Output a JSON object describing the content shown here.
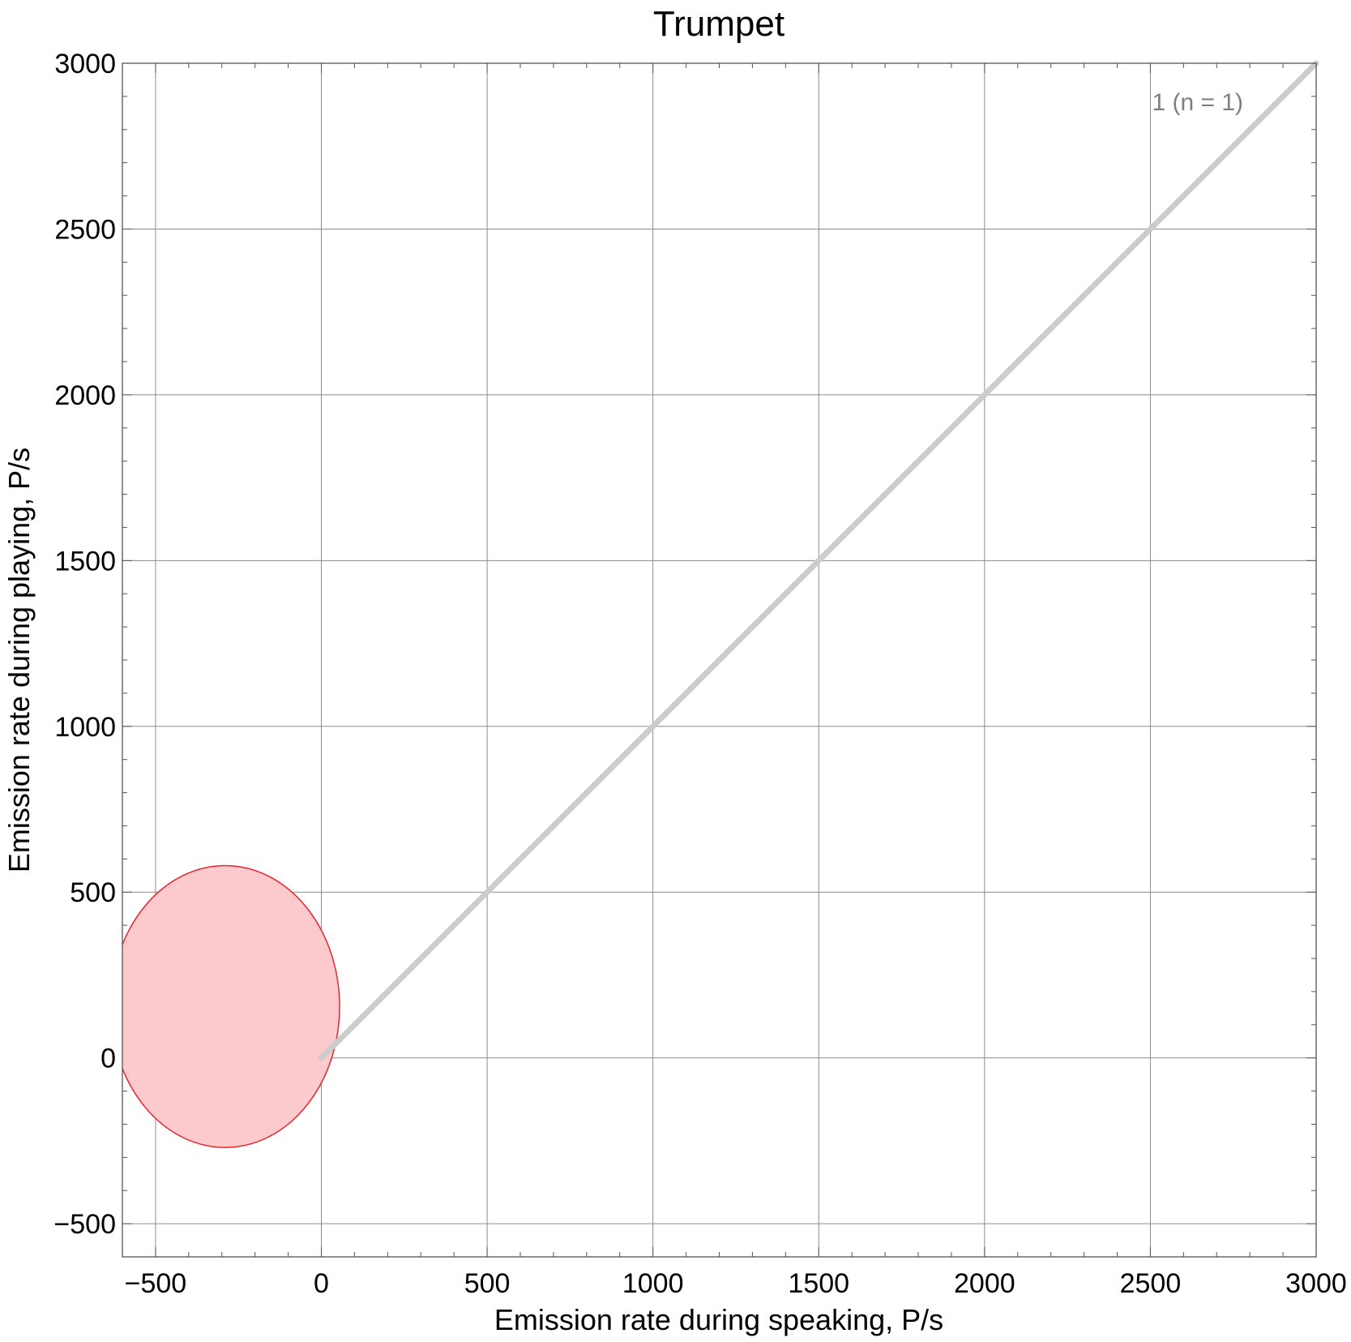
{
  "chart_data": {
    "type": "scatter",
    "title": "Trumpet",
    "xlabel": "Emission rate during speaking,  P/s",
    "ylabel": "Emission rate during playing,  P/s",
    "xlim": [
      -600,
      3000
    ],
    "ylim": [
      -600,
      3000
    ],
    "xticks": [
      -500,
      0,
      500,
      1000,
      1500,
      2000,
      2500,
      3000
    ],
    "yticks": [
      -500,
      0,
      500,
      1000,
      1500,
      2000,
      2500,
      3000
    ],
    "xtick_labels": [
      "−500",
      "0",
      "500",
      "1000",
      "1500",
      "2000",
      "2500",
      "3000"
    ],
    "ytick_labels": [
      "−500",
      "0",
      "500",
      "1000",
      "1500",
      "2000",
      "2500",
      "3000"
    ],
    "grid": true,
    "reference_line": {
      "from": [
        0,
        0
      ],
      "to": [
        3000,
        3000
      ],
      "color": "#cccccc"
    },
    "ellipses": [
      {
        "cx": -290,
        "cy": 155,
        "rx": 345,
        "ry": 425,
        "fill": "#fcc9cc",
        "stroke": "#e8252d"
      }
    ],
    "annotation": "1  (n = 1)",
    "annotation_position": "top-right"
  }
}
